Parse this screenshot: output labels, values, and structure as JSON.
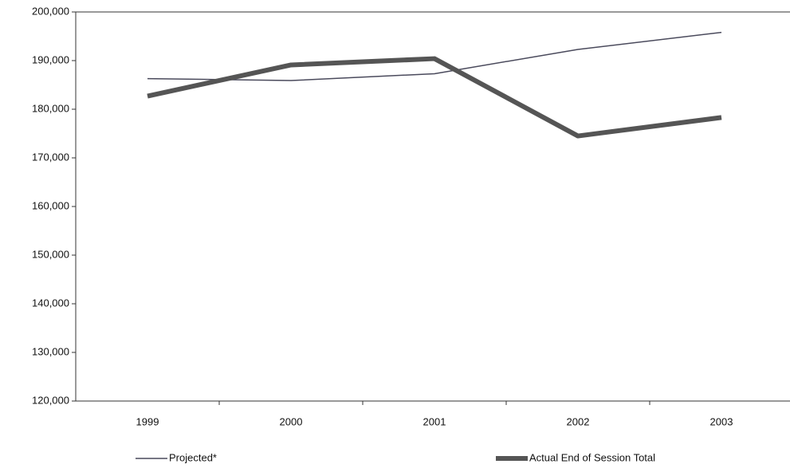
{
  "chart_data": {
    "type": "line",
    "legend": "bottom",
    "categories": [
      "1999",
      "2000",
      "2001",
      "2002",
      "2003"
    ],
    "series": [
      {
        "name": "Projected*",
        "color": "#4a4a5c",
        "width": 1.5,
        "values": [
          186300,
          185900,
          187300,
          192300,
          195800
        ]
      },
      {
        "name": "Actual End of Session Total",
        "color": "#555555",
        "width": 6,
        "values": [
          182700,
          189100,
          190400,
          174500,
          178300
        ]
      }
    ],
    "ylim": [
      120000,
      200000
    ],
    "yticks": [
      {
        "value": 120000,
        "label": "120,000"
      },
      {
        "value": 130000,
        "label": "130,000"
      },
      {
        "value": 140000,
        "label": "140,000"
      },
      {
        "value": 150000,
        "label": "150,000"
      },
      {
        "value": 160000,
        "label": "160,000"
      },
      {
        "value": 170000,
        "label": "170,000"
      },
      {
        "value": 180000,
        "label": "180,000"
      },
      {
        "value": 190000,
        "label": "190,000"
      },
      {
        "value": 200000,
        "label": "200,000"
      }
    ]
  }
}
